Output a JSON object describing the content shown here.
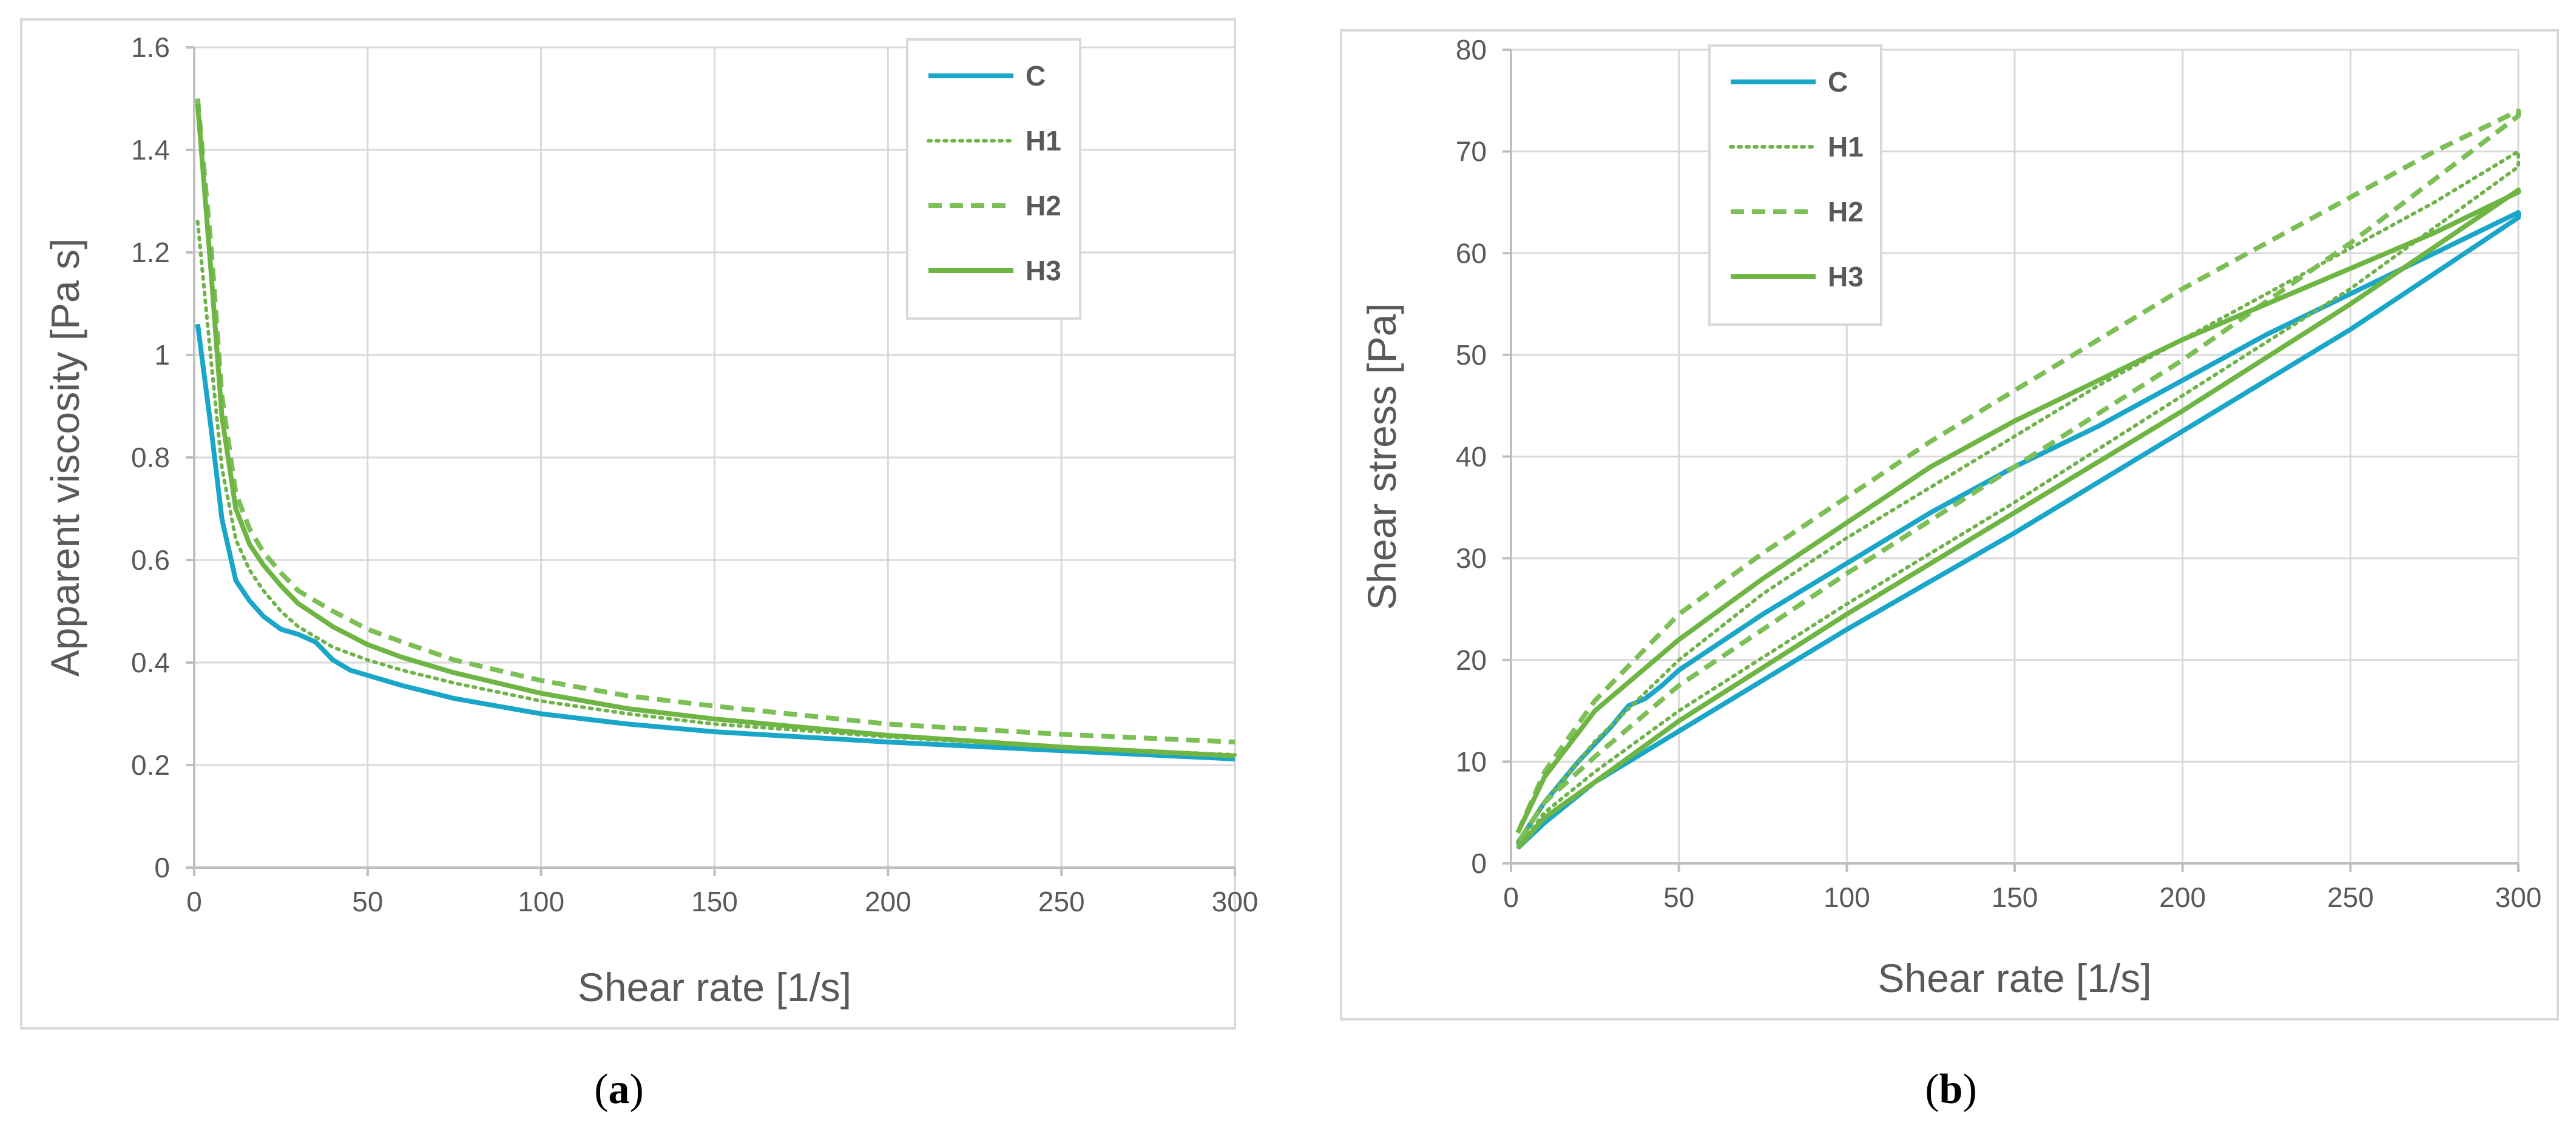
{
  "chart_data": [
    {
      "type": "line",
      "caption": "(a)",
      "caption_bold": "a",
      "xlabel": "Shear rate [1/s]",
      "ylabel": "Apparent viscosity [Pa s]",
      "xlim": [
        0,
        300
      ],
      "ylim": [
        0,
        1.6
      ],
      "xticks": [
        0,
        50,
        100,
        150,
        200,
        250,
        300
      ],
      "yticks": [
        0,
        0.2,
        0.4,
        0.6,
        0.8,
        1,
        1.2,
        1.4,
        1.6
      ],
      "ytick_labels": [
        "0",
        "0.2",
        "0.4",
        "0.6",
        "0.8",
        "1",
        "1.2",
        "1.4",
        "1.6"
      ],
      "grid": true,
      "legend_position": "top-right",
      "series": [
        {
          "name": "C",
          "style": "solid",
          "color": "#1aa6c8",
          "x": [
            1,
            5,
            8,
            12,
            16,
            20,
            25,
            30,
            35,
            40,
            45,
            50,
            60,
            75,
            100,
            125,
            150,
            200,
            250,
            300
          ],
          "y": [
            1.06,
            0.85,
            0.68,
            0.56,
            0.52,
            0.49,
            0.465,
            0.455,
            0.44,
            0.405,
            0.385,
            0.375,
            0.355,
            0.33,
            0.3,
            0.28,
            0.265,
            0.245,
            0.228,
            0.212
          ]
        },
        {
          "name": "H1",
          "style": "dotted",
          "color": "#70b34b",
          "x": [
            1,
            5,
            8,
            12,
            16,
            20,
            25,
            30,
            40,
            50,
            60,
            75,
            100,
            125,
            150,
            200,
            250,
            300
          ],
          "y": [
            1.26,
            0.98,
            0.78,
            0.64,
            0.58,
            0.54,
            0.5,
            0.47,
            0.43,
            0.405,
            0.385,
            0.36,
            0.325,
            0.3,
            0.28,
            0.255,
            0.235,
            0.22
          ]
        },
        {
          "name": "H2",
          "style": "dashed",
          "color": "#7cbf56",
          "x": [
            1,
            5,
            8,
            12,
            16,
            20,
            25,
            30,
            40,
            50,
            60,
            75,
            100,
            125,
            150,
            200,
            250,
            300
          ],
          "y": [
            1.5,
            1.2,
            0.92,
            0.73,
            0.66,
            0.615,
            0.575,
            0.54,
            0.5,
            0.465,
            0.44,
            0.405,
            0.365,
            0.335,
            0.315,
            0.28,
            0.26,
            0.245
          ]
        },
        {
          "name": "H3",
          "style": "solid",
          "color": "#6fb544",
          "x": [
            1,
            5,
            8,
            12,
            16,
            20,
            25,
            30,
            40,
            50,
            60,
            75,
            100,
            125,
            150,
            200,
            250,
            300
          ],
          "y": [
            1.49,
            1.15,
            0.88,
            0.7,
            0.63,
            0.59,
            0.55,
            0.515,
            0.47,
            0.435,
            0.41,
            0.38,
            0.34,
            0.31,
            0.29,
            0.258,
            0.235,
            0.218
          ]
        }
      ]
    },
    {
      "type": "line",
      "caption": "(b)",
      "caption_bold": "b",
      "xlabel": "Shear rate [1/s]",
      "ylabel": "Shear stress [Pa]",
      "xlim": [
        0,
        300
      ],
      "ylim": [
        0,
        80
      ],
      "xticks": [
        0,
        50,
        100,
        150,
        200,
        250,
        300
      ],
      "yticks": [
        0,
        10,
        20,
        30,
        40,
        50,
        60,
        70,
        80
      ],
      "ytick_labels": [
        "0",
        "10",
        "20",
        "30",
        "40",
        "50",
        "60",
        "70",
        "80"
      ],
      "grid": true,
      "legend_position": "top-left",
      "series": [
        {
          "name": "C",
          "style": "solid",
          "color": "#1aa6c8",
          "x": [
            2,
            10,
            20,
            30,
            35,
            40,
            45,
            50,
            75,
            100,
            125,
            150,
            175,
            200,
            225,
            250,
            275,
            300,
            300,
            250,
            200,
            150,
            100,
            50,
            25,
            10,
            2
          ],
          "y": [
            2,
            6,
            10,
            13.5,
            15.5,
            16.2,
            17.5,
            19,
            24.5,
            29.5,
            34.5,
            39,
            43,
            47.5,
            52,
            56,
            60,
            64,
            63.5,
            52.5,
            42.5,
            32.5,
            23,
            13,
            8,
            4,
            1.5
          ]
        },
        {
          "name": "H1",
          "style": "dotted",
          "color": "#70b34b",
          "x": [
            2,
            10,
            25,
            50,
            75,
            100,
            125,
            150,
            175,
            200,
            225,
            250,
            275,
            300,
            300,
            250,
            200,
            150,
            100,
            50,
            25,
            10,
            2
          ],
          "y": [
            2,
            6,
            12,
            20,
            26.5,
            32,
            37,
            42,
            47,
            51.5,
            56,
            60.5,
            65,
            70,
            68.5,
            56.5,
            46,
            35.5,
            25.5,
            15,
            9,
            5,
            1.5
          ]
        },
        {
          "name": "H2",
          "style": "dashed",
          "color": "#7cbf56",
          "x": [
            2,
            10,
            25,
            50,
            75,
            100,
            125,
            150,
            175,
            200,
            225,
            250,
            275,
            300,
            300,
            250,
            200,
            150,
            100,
            50,
            25,
            10,
            2
          ],
          "y": [
            3,
            9,
            16,
            24.5,
            30.5,
            36,
            41.5,
            46.5,
            51.5,
            56.5,
            61,
            65.5,
            70,
            74,
            73.5,
            61,
            49.5,
            39,
            28.5,
            17.5,
            10.5,
            6,
            2
          ]
        },
        {
          "name": "H3",
          "style": "solid",
          "color": "#6fb544",
          "x": [
            2,
            10,
            25,
            50,
            75,
            100,
            125,
            150,
            175,
            200,
            225,
            250,
            275,
            300,
            300,
            250,
            200,
            150,
            100,
            50,
            25,
            10,
            2
          ],
          "y": [
            3,
            8.5,
            15,
            22,
            28,
            33.5,
            39,
            43.5,
            47.5,
            51.5,
            55,
            58.5,
            62,
            66,
            66.2,
            55,
            44.5,
            34.5,
            24.5,
            14,
            8,
            4.5,
            1.5
          ]
        }
      ]
    }
  ]
}
